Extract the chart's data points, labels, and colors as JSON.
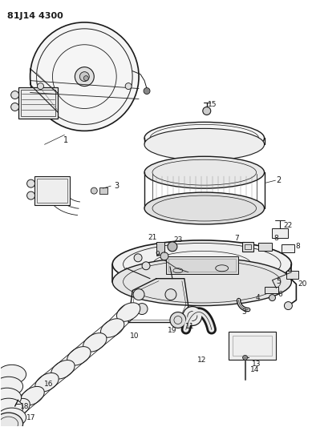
{
  "title": "81J14 4300",
  "bg_color": "#ffffff",
  "line_color": "#1a1a1a",
  "label_color": "#1a1a1a",
  "title_fontsize": 8,
  "fig_width": 3.89,
  "fig_height": 5.33,
  "dpi": 100
}
